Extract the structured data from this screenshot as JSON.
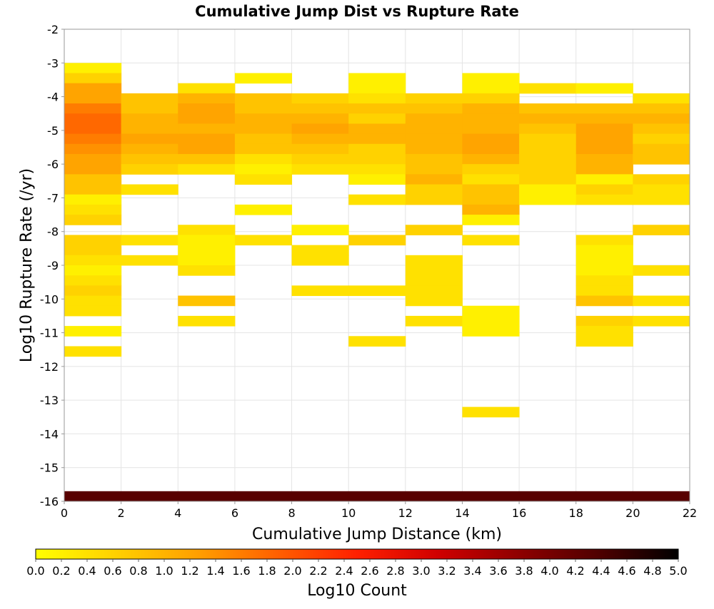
{
  "chart_data": {
    "type": "heatmap",
    "title": "Cumulative Jump Dist vs Rupture Rate",
    "xlabel": "Cumulative Jump Distance (km)",
    "ylabel": "Log10 Rupture Rate (/yr)",
    "xlim": [
      0,
      22
    ],
    "ylim": [
      -16,
      -2
    ],
    "x_ticks": [
      "0",
      "2",
      "4",
      "6",
      "8",
      "10",
      "12",
      "14",
      "16",
      "18",
      "20",
      "22"
    ],
    "y_ticks": [
      "-2",
      "-3",
      "-4",
      "-5",
      "-6",
      "-7",
      "-8",
      "-9",
      "-10",
      "-11",
      "-12",
      "-13",
      "-14",
      "-15",
      "-16"
    ],
    "grid": true,
    "x_bin_width": 2,
    "y_bin_height": 0.3,
    "colorbar": {
      "label": "Log10 Count",
      "min": 0.0,
      "max": 5.0,
      "ticks": [
        "0.0",
        "0.2",
        "0.4",
        "0.6",
        "0.8",
        "1.0",
        "1.2",
        "1.4",
        "1.6",
        "1.8",
        "2.0",
        "2.2",
        "2.4",
        "2.6",
        "2.8",
        "3.0",
        "3.2",
        "3.4",
        "3.6",
        "3.8",
        "4.0",
        "4.2",
        "4.4",
        "4.6",
        "4.8",
        "5.0"
      ],
      "colors": [
        "#ffff00",
        "#ffd000",
        "#ffa000",
        "#ff6000",
        "#ff2000",
        "#d00000",
        "#900000",
        "#500000",
        "#000000"
      ]
    },
    "columns": [
      {
        "x_start": 0,
        "cells": [
          {
            "y": -3.15,
            "v": 0.2
          },
          {
            "y": -3.45,
            "v": 0.6
          },
          {
            "y": -3.75,
            "v": 1.2
          },
          {
            "y": -4.05,
            "v": 1.2
          },
          {
            "y": -4.35,
            "v": 1.6
          },
          {
            "y": -4.65,
            "v": 1.8
          },
          {
            "y": -4.95,
            "v": 1.8
          },
          {
            "y": -5.25,
            "v": 1.6
          },
          {
            "y": -5.55,
            "v": 1.4
          },
          {
            "y": -5.85,
            "v": 1.2
          },
          {
            "y": -6.15,
            "v": 1.2
          },
          {
            "y": -6.45,
            "v": 0.8
          },
          {
            "y": -6.75,
            "v": 0.8
          },
          {
            "y": -7.05,
            "v": 0.2
          },
          {
            "y": -7.35,
            "v": 0.4
          },
          {
            "y": -7.65,
            "v": 0.6
          },
          {
            "y": -8.25,
            "v": 0.6
          },
          {
            "y": -8.55,
            "v": 0.6
          },
          {
            "y": -8.85,
            "v": 0.4
          },
          {
            "y": -9.15,
            "v": 0.2
          },
          {
            "y": -9.45,
            "v": 0.4
          },
          {
            "y": -9.75,
            "v": 0.6
          },
          {
            "y": -10.05,
            "v": 0.4
          },
          {
            "y": -10.35,
            "v": 0.4
          },
          {
            "y": -10.95,
            "v": 0.2
          },
          {
            "y": -11.55,
            "v": 0.4
          }
        ]
      },
      {
        "x_start": 2,
        "cells": [
          {
            "y": -4.05,
            "v": 0.8
          },
          {
            "y": -4.35,
            "v": 0.8
          },
          {
            "y": -4.65,
            "v": 1.0
          },
          {
            "y": -4.95,
            "v": 1.0
          },
          {
            "y": -5.25,
            "v": 1.2
          },
          {
            "y": -5.55,
            "v": 1.0
          },
          {
            "y": -5.85,
            "v": 0.8
          },
          {
            "y": -6.15,
            "v": 0.6
          },
          {
            "y": -6.75,
            "v": 0.4
          },
          {
            "y": -8.25,
            "v": 0.4
          },
          {
            "y": -8.85,
            "v": 0.4
          }
        ]
      },
      {
        "x_start": 4,
        "cells": [
          {
            "y": -3.75,
            "v": 0.4
          },
          {
            "y": -4.05,
            "v": 1.0
          },
          {
            "y": -4.35,
            "v": 1.2
          },
          {
            "y": -4.65,
            "v": 1.2
          },
          {
            "y": -4.95,
            "v": 1.0
          },
          {
            "y": -5.25,
            "v": 1.2
          },
          {
            "y": -5.55,
            "v": 1.2
          },
          {
            "y": -5.85,
            "v": 0.8
          },
          {
            "y": -6.15,
            "v": 0.4
          },
          {
            "y": -7.95,
            "v": 0.4
          },
          {
            "y": -8.25,
            "v": 0.2
          },
          {
            "y": -8.55,
            "v": 0.2
          },
          {
            "y": -8.85,
            "v": 0.2
          },
          {
            "y": -9.15,
            "v": 0.4
          },
          {
            "y": -10.05,
            "v": 0.8
          },
          {
            "y": -10.65,
            "v": 0.4
          }
        ]
      },
      {
        "x_start": 6,
        "cells": [
          {
            "y": -3.45,
            "v": 0.2
          },
          {
            "y": -4.05,
            "v": 0.8
          },
          {
            "y": -4.35,
            "v": 0.8
          },
          {
            "y": -4.65,
            "v": 1.0
          },
          {
            "y": -4.95,
            "v": 1.0
          },
          {
            "y": -5.25,
            "v": 0.8
          },
          {
            "y": -5.55,
            "v": 0.8
          },
          {
            "y": -5.85,
            "v": 0.4
          },
          {
            "y": -6.15,
            "v": 0.2
          },
          {
            "y": -6.45,
            "v": 0.4
          },
          {
            "y": -7.35,
            "v": 0.2
          },
          {
            "y": -8.25,
            "v": 0.4
          }
        ]
      },
      {
        "x_start": 8,
        "cells": [
          {
            "y": -4.05,
            "v": 0.6
          },
          {
            "y": -4.35,
            "v": 0.8
          },
          {
            "y": -4.65,
            "v": 1.0
          },
          {
            "y": -4.95,
            "v": 1.2
          },
          {
            "y": -5.25,
            "v": 1.0
          },
          {
            "y": -5.55,
            "v": 0.8
          },
          {
            "y": -5.85,
            "v": 0.6
          },
          {
            "y": -6.15,
            "v": 0.4
          },
          {
            "y": -7.95,
            "v": 0.2
          },
          {
            "y": -8.55,
            "v": 0.4
          },
          {
            "y": -8.85,
            "v": 0.4
          },
          {
            "y": -9.75,
            "v": 0.4
          }
        ]
      },
      {
        "x_start": 10,
        "cells": [
          {
            "y": -3.45,
            "v": 0.2
          },
          {
            "y": -3.75,
            "v": 0.2
          },
          {
            "y": -4.05,
            "v": 0.4
          },
          {
            "y": -4.35,
            "v": 0.8
          },
          {
            "y": -4.65,
            "v": 0.6
          },
          {
            "y": -4.95,
            "v": 1.0
          },
          {
            "y": -5.25,
            "v": 1.0
          },
          {
            "y": -5.55,
            "v": 0.6
          },
          {
            "y": -5.85,
            "v": 0.6
          },
          {
            "y": -6.15,
            "v": 0.4
          },
          {
            "y": -6.45,
            "v": 0.2
          },
          {
            "y": -7.05,
            "v": 0.4
          },
          {
            "y": -8.25,
            "v": 0.6
          },
          {
            "y": -9.75,
            "v": 0.4
          },
          {
            "y": -11.25,
            "v": 0.4
          }
        ]
      },
      {
        "x_start": 12,
        "cells": [
          {
            "y": -4.05,
            "v": 0.6
          },
          {
            "y": -4.35,
            "v": 0.8
          },
          {
            "y": -4.65,
            "v": 1.0
          },
          {
            "y": -4.95,
            "v": 1.0
          },
          {
            "y": -5.25,
            "v": 1.0
          },
          {
            "y": -5.55,
            "v": 1.0
          },
          {
            "y": -5.85,
            "v": 0.8
          },
          {
            "y": -6.15,
            "v": 0.8
          },
          {
            "y": -6.45,
            "v": 1.0
          },
          {
            "y": -6.75,
            "v": 0.6
          },
          {
            "y": -7.05,
            "v": 0.6
          },
          {
            "y": -7.95,
            "v": 0.6
          },
          {
            "y": -8.85,
            "v": 0.4
          },
          {
            "y": -9.15,
            "v": 0.4
          },
          {
            "y": -9.45,
            "v": 0.4
          },
          {
            "y": -9.75,
            "v": 0.4
          },
          {
            "y": -10.05,
            "v": 0.4
          },
          {
            "y": -10.65,
            "v": 0.4
          }
        ]
      },
      {
        "x_start": 14,
        "cells": [
          {
            "y": -3.45,
            "v": 0.2
          },
          {
            "y": -3.75,
            "v": 0.2
          },
          {
            "y": -4.05,
            "v": 0.6
          },
          {
            "y": -4.35,
            "v": 1.0
          },
          {
            "y": -4.65,
            "v": 1.0
          },
          {
            "y": -4.95,
            "v": 1.0
          },
          {
            "y": -5.25,
            "v": 1.2
          },
          {
            "y": -5.55,
            "v": 1.2
          },
          {
            "y": -5.85,
            "v": 1.0
          },
          {
            "y": -6.15,
            "v": 0.6
          },
          {
            "y": -6.45,
            "v": 0.4
          },
          {
            "y": -6.75,
            "v": 0.8
          },
          {
            "y": -7.05,
            "v": 0.8
          },
          {
            "y": -7.35,
            "v": 1.0
          },
          {
            "y": -7.65,
            "v": 0.2
          },
          {
            "y": -8.25,
            "v": 0.4
          },
          {
            "y": -10.35,
            "v": 0.2
          },
          {
            "y": -10.65,
            "v": 0.2
          },
          {
            "y": -10.95,
            "v": 0.2
          },
          {
            "y": -13.35,
            "v": 0.4
          }
        ]
      },
      {
        "x_start": 16,
        "cells": [
          {
            "y": -3.75,
            "v": 0.4
          },
          {
            "y": -4.35,
            "v": 0.8
          },
          {
            "y": -4.65,
            "v": 1.0
          },
          {
            "y": -4.95,
            "v": 0.8
          },
          {
            "y": -5.25,
            "v": 0.6
          },
          {
            "y": -5.55,
            "v": 0.6
          },
          {
            "y": -5.85,
            "v": 0.6
          },
          {
            "y": -6.15,
            "v": 0.6
          },
          {
            "y": -6.45,
            "v": 0.6
          },
          {
            "y": -6.75,
            "v": 0.2
          },
          {
            "y": -7.05,
            "v": 0.2
          }
        ]
      },
      {
        "x_start": 18,
        "cells": [
          {
            "y": -3.75,
            "v": 0.2
          },
          {
            "y": -4.35,
            "v": 0.8
          },
          {
            "y": -4.65,
            "v": 1.0
          },
          {
            "y": -4.95,
            "v": 1.2
          },
          {
            "y": -5.25,
            "v": 1.2
          },
          {
            "y": -5.55,
            "v": 1.2
          },
          {
            "y": -5.85,
            "v": 1.0
          },
          {
            "y": -6.15,
            "v": 1.0
          },
          {
            "y": -6.45,
            "v": 0.2
          },
          {
            "y": -6.75,
            "v": 0.6
          },
          {
            "y": -7.05,
            "v": 0.4
          },
          {
            "y": -8.25,
            "v": 0.4
          },
          {
            "y": -8.55,
            "v": 0.2
          },
          {
            "y": -8.85,
            "v": 0.2
          },
          {
            "y": -9.15,
            "v": 0.2
          },
          {
            "y": -9.45,
            "v": 0.4
          },
          {
            "y": -9.75,
            "v": 0.4
          },
          {
            "y": -10.05,
            "v": 0.8
          },
          {
            "y": -10.65,
            "v": 0.6
          },
          {
            "y": -10.95,
            "v": 0.4
          },
          {
            "y": -11.25,
            "v": 0.4
          }
        ]
      },
      {
        "x_start": 20,
        "cells": [
          {
            "y": -4.05,
            "v": 0.4
          },
          {
            "y": -4.35,
            "v": 0.8
          },
          {
            "y": -4.65,
            "v": 1.0
          },
          {
            "y": -4.95,
            "v": 0.8
          },
          {
            "y": -5.25,
            "v": 0.6
          },
          {
            "y": -5.55,
            "v": 0.8
          },
          {
            "y": -5.85,
            "v": 0.8
          },
          {
            "y": -6.45,
            "v": 0.6
          },
          {
            "y": -6.75,
            "v": 0.4
          },
          {
            "y": -7.05,
            "v": 0.4
          },
          {
            "y": -7.95,
            "v": 0.6
          },
          {
            "y": -9.15,
            "v": 0.4
          },
          {
            "y": -10.05,
            "v": 0.4
          },
          {
            "y": -10.65,
            "v": 0.4
          }
        ]
      }
    ],
    "bottom_band": {
      "x_range": [
        0,
        22
      ],
      "y": -16,
      "v": 4.3
    }
  }
}
